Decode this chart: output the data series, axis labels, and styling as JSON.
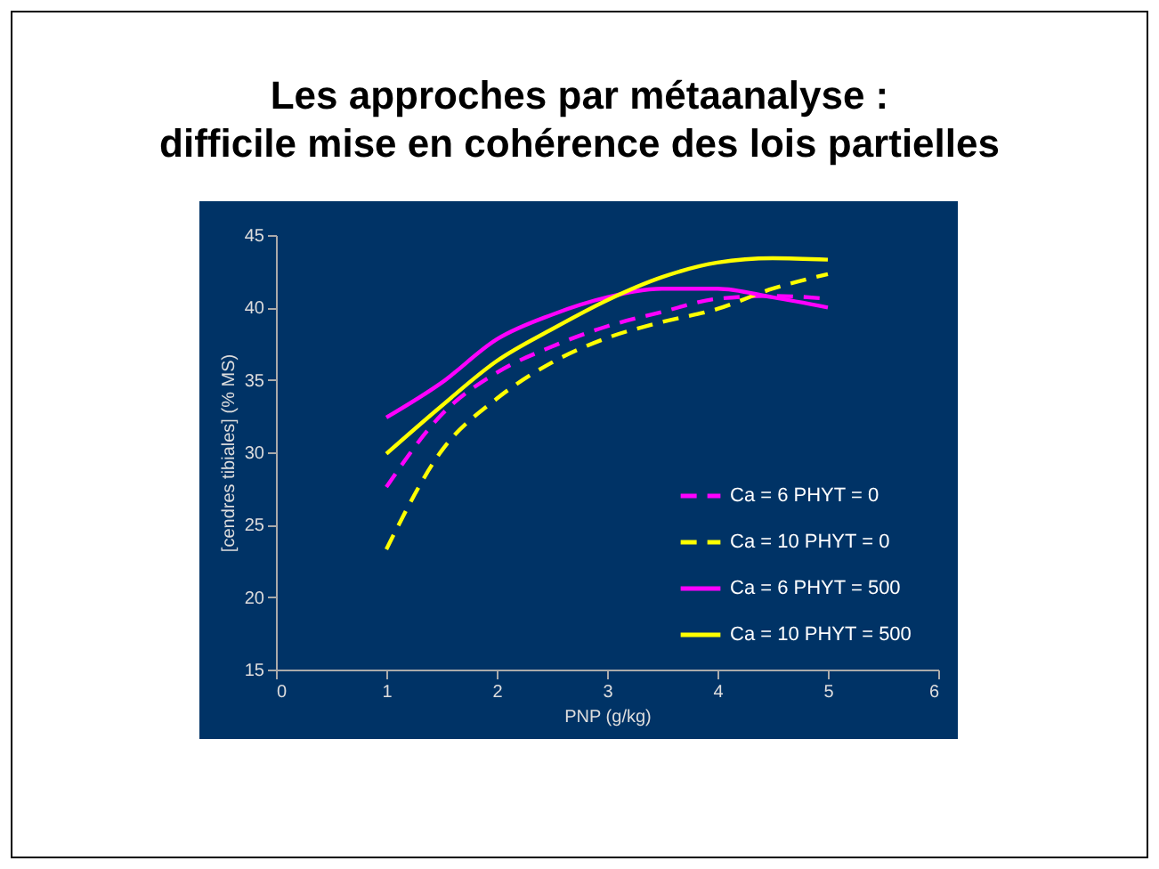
{
  "chart_data": {
    "type": "line",
    "title": "Les approches par métaanalyse :\ndifficile mise en cohérence des lois partielles",
    "xlabel": "PNP (g/kg)",
    "ylabel": "[cendres tibiales] (% MS)",
    "x": [
      1,
      1.5,
      2,
      2.5,
      3,
      3.5,
      4,
      4.5,
      5
    ],
    "series": [
      {
        "name": "Ca = 6 PHYT = 0",
        "color": "#ff00ff",
        "line_style": "dashed",
        "values": [
          27.6,
          32.6,
          35.5,
          37.3,
          38.7,
          39.7,
          40.6,
          40.8,
          40.6
        ]
      },
      {
        "name": "Ca = 10 PHYT = 0",
        "color": "#ffff00",
        "line_style": "dashed",
        "values": [
          23.3,
          30.1,
          33.7,
          36.2,
          37.9,
          39.0,
          39.9,
          41.3,
          42.3
        ]
      },
      {
        "name": "Ca = 6 PHYT = 500",
        "color": "#ff00ff",
        "line_style": "solid",
        "values": [
          32.4,
          34.8,
          37.8,
          39.5,
          40.7,
          41.3,
          41.3,
          40.7,
          40.0
        ]
      },
      {
        "name": "Ca = 10 PHYT = 500",
        "color": "#ffff00",
        "line_style": "solid",
        "values": [
          29.9,
          33.2,
          36.3,
          38.5,
          40.5,
          42.1,
          43.1,
          43.4,
          43.3
        ]
      }
    ],
    "xlim": [
      0,
      6
    ],
    "xticks": [
      0,
      1,
      2,
      3,
      4,
      5,
      6
    ],
    "ylim": [
      15,
      45
    ],
    "yticks": [
      15,
      20,
      25,
      30,
      35,
      40,
      45
    ],
    "grid": false,
    "legend": "bottom right",
    "marker": "none"
  }
}
